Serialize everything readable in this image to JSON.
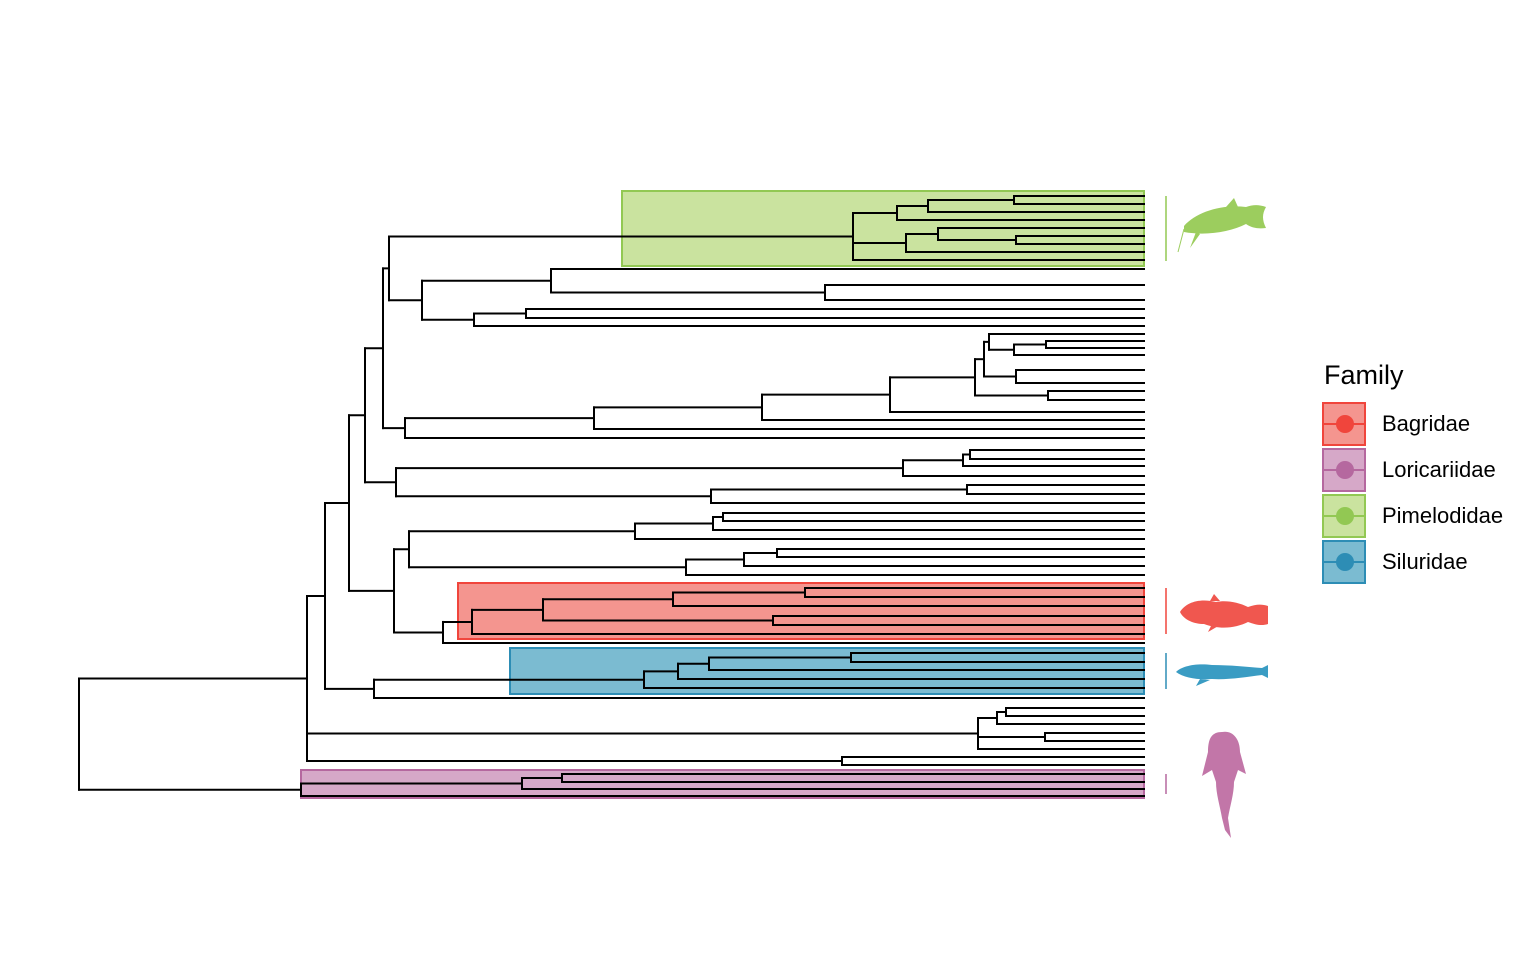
{
  "legend": {
    "title": "Family",
    "items": [
      {
        "label": "Bagridae",
        "color": "#f0453c",
        "fill": "#f4958f"
      },
      {
        "label": "Loricariidae",
        "color": "#b5689f",
        "fill": "#d6a8c8"
      },
      {
        "label": "Pimelodidae",
        "color": "#92c853",
        "fill": "#cae39f"
      },
      {
        "label": "Siluridae",
        "color": "#2d8db5",
        "fill": "#7bbbd1"
      }
    ]
  },
  "tree": {
    "branch_color": "#000000",
    "clades": [
      "Pimelodidae",
      "Bagridae",
      "Siluridae",
      "Loricariidae"
    ],
    "silhouettes": [
      {
        "family": "Pimelodidae",
        "icon": "catfish-silhouette-icon"
      },
      {
        "family": "Bagridae",
        "icon": "catfish-silhouette-icon"
      },
      {
        "family": "Siluridae",
        "icon": "catfish-silhouette-icon"
      },
      {
        "family": "Loricariidae",
        "icon": "suckermouth-catfish-silhouette-icon"
      }
    ]
  }
}
